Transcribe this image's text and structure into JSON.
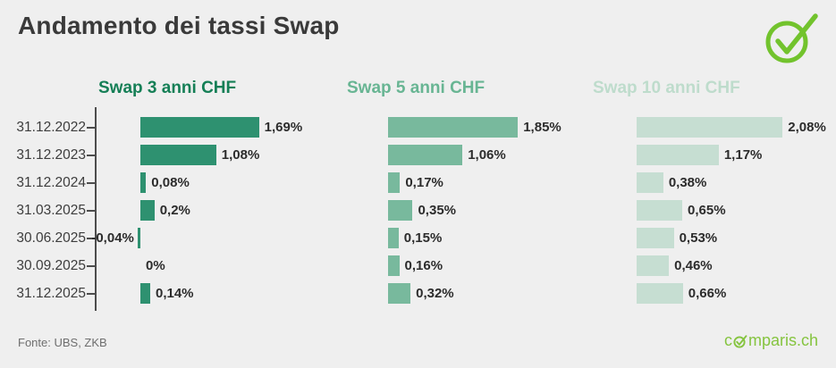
{
  "header": {
    "title": "Andamento dei tassi Swap"
  },
  "chart_data": {
    "type": "bar",
    "orientation": "horizontal",
    "title": "Andamento dei tassi Swap",
    "categories": [
      "31.12.2022",
      "31.12.2023",
      "31.12.2024",
      "31.03.2025",
      "30.06.2025",
      "30.09.2025",
      "31.12.2025"
    ],
    "value_suffix": "%",
    "xlim": [
      0,
      2.2
    ],
    "grid": false,
    "legend_position": "column-headers-top",
    "series": [
      {
        "name": "Swap 3 anni CHF",
        "header_color": "#157f56",
        "bar_color": "#2e9170",
        "values": [
          1.69,
          1.08,
          0.08,
          0.2,
          -0.04,
          0,
          0.14
        ],
        "labels": [
          "1,69%",
          "1,08%",
          "0,08%",
          "0,2%",
          "-0,04%",
          "0%",
          "0,14%"
        ]
      },
      {
        "name": "Swap 5 anni CHF",
        "header_color": "#68b593",
        "bar_color": "#78b99d",
        "values": [
          1.85,
          1.06,
          0.17,
          0.35,
          0.15,
          0.16,
          0.32
        ],
        "labels": [
          "1,85%",
          "1,06%",
          "0,17%",
          "0,35%",
          "0,15%",
          "0,16%",
          "0,32%"
        ]
      },
      {
        "name": "Swap 10 anni CHF",
        "header_color": "#bedccc",
        "bar_color": "#c6ded2",
        "values": [
          2.08,
          1.17,
          0.38,
          0.65,
          0.53,
          0.46,
          0.66
        ],
        "labels": [
          "2,08%",
          "1,17%",
          "0,38%",
          "0,65%",
          "0,53%",
          "0,46%",
          "0,66%"
        ]
      }
    ]
  },
  "footer": {
    "source": "Fonte: UBS, ZKB",
    "brand": "comparis.ch",
    "brand_prefix": "c",
    "brand_suffix": "mparis.ch"
  },
  "colors": {
    "background": "#efefef",
    "check_logo_green": "#72c32d",
    "brand_green": "#85c43f",
    "axis": "#4d4d4d",
    "title_text": "#3a3a3a"
  }
}
